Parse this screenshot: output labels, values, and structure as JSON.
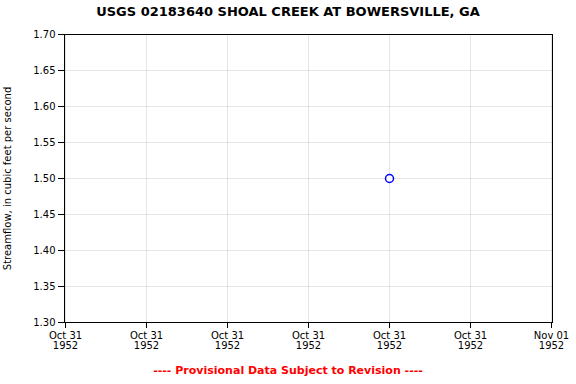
{
  "chart_data": {
    "type": "scatter",
    "title": "USGS 02183640 SHOAL CREEK AT BOWERSVILLE, GA",
    "y_label": "Streamflow, in cubic feet per second",
    "categories": [
      "Oct 31\n1952",
      "Oct 31\n1952",
      "Oct 31\n1952",
      "Oct 31\n1952",
      "Oct 31\n1952",
      "Oct 31\n1952",
      "Nov 01\n1952"
    ],
    "values": [
      null,
      null,
      null,
      null,
      1.5,
      null,
      null
    ],
    "color": "#0000ff",
    "marker": "circle",
    "ylim": [
      1.3,
      1.7
    ],
    "yticks": [
      {
        "value": 1.3,
        "label": "1.30"
      },
      {
        "value": 1.35,
        "label": "1.35"
      },
      {
        "value": 1.4,
        "label": "1.40"
      },
      {
        "value": 1.45,
        "label": "1.45"
      },
      {
        "value": 1.5,
        "label": "1.50"
      },
      {
        "value": 1.55,
        "label": "1.55"
      },
      {
        "value": 1.6,
        "label": "1.60"
      },
      {
        "value": 1.65,
        "label": "1.65"
      },
      {
        "value": 1.7,
        "label": "1.70"
      }
    ],
    "grid": true,
    "footnote": "---- Provisional Data Subject to Revision ----",
    "footnote_color": "#ff0000"
  }
}
